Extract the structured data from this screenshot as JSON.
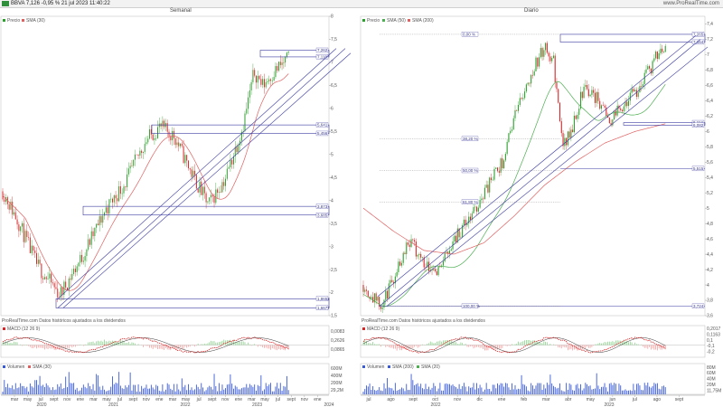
{
  "header": {
    "ticker_text": "BBVA 7,126 -0,95 % 21 jul 2023 11:40:22",
    "brand": "www.ProRealTime.com"
  },
  "panels": [
    {
      "title": "Semanal",
      "legend_price": "Precio",
      "legend_sma": "SMA (30)",
      "source_note": "ProRealTime.com  Datos históricos ajustados a los dividendos",
      "macd_label": "MACD (12 26 9)",
      "volume_label": "Volumen",
      "volume_sma_label": "SMA (30)",
      "price_ticks": [
        "8",
        "7,5",
        "7",
        "6,5",
        "6",
        "5,5",
        "5",
        "4,5",
        "4",
        "3,5",
        "3",
        "2,5",
        "2",
        "1,5"
      ],
      "level_labels": [
        "7,262",
        "7,118",
        "5,641",
        "5,456",
        "3,873",
        "3,685",
        "1,8652",
        "1,6677"
      ],
      "macd_ticks": [
        "0,0083",
        "0,2626",
        "0,0865"
      ],
      "volume_ticks": [
        "600M",
        "400M",
        "200M",
        "29,2M"
      ],
      "x_months": [
        "mar",
        "may",
        "jul",
        "sept",
        "nov",
        "ene",
        "mar",
        "may",
        "jul",
        "sept",
        "nov",
        "ene",
        "mar",
        "may",
        "jul",
        "sept",
        "nov",
        "ene",
        "mar",
        "may",
        "jul",
        "sept",
        "nov",
        "ene"
      ],
      "x_years": [
        "2020",
        "2021",
        "2022",
        "2023",
        "2024"
      ]
    },
    {
      "title": "Diario",
      "legend_price": "Precio",
      "legend_sma1": "SMA (50)",
      "legend_sma2": "SMA (200)",
      "source_note": "ProRealTime.com  Datos históricos ajustados a los dividendos",
      "macd_label": "MACD (12 26 9)",
      "volume_label": "Volumen",
      "volume_sma1_label": "SMA (200)",
      "volume_sma2_label": "SMA (20)",
      "price_ticks": [
        "7,4",
        "7,2",
        "7",
        "6,8",
        "6,6",
        "6,4",
        "6,2",
        "6",
        "5,8",
        "5,6",
        "5,4",
        "5,2",
        "5",
        "4,8",
        "4,6",
        "4,4",
        "4,2",
        "4",
        "3,8",
        "3,6"
      ],
      "level_labels": [
        "7,265",
        "7,164",
        "6,114",
        "6,082",
        "5,515",
        "3,724"
      ],
      "fib_labels": [
        "0,00 %",
        "38,20 %",
        "50,00 %",
        "61,80 %",
        "100,00 %"
      ],
      "macd_ticks": [
        "0,2017",
        "0,1163",
        "0,1",
        "-0,1",
        "-0,2"
      ],
      "volume_ticks": [
        "80M",
        "60M",
        "40M",
        "20M",
        "11,75M"
      ],
      "x_months": [
        "jul",
        "ago",
        "sept",
        "oct",
        "nov",
        "dic",
        "ene",
        "feb",
        "mar",
        "abr",
        "may",
        "jun",
        "jul",
        "ago",
        "sept"
      ],
      "x_years": [
        "2022",
        "2023"
      ]
    }
  ],
  "colors": {
    "up": "#2ca02c",
    "down": "#d62728",
    "sma_red": "#e06060",
    "sma_green": "#4caf50",
    "trend": "#3a3aa0",
    "macd_red": "#d62728",
    "macd_line": "#333333",
    "volume": "#3b5bd6"
  }
}
